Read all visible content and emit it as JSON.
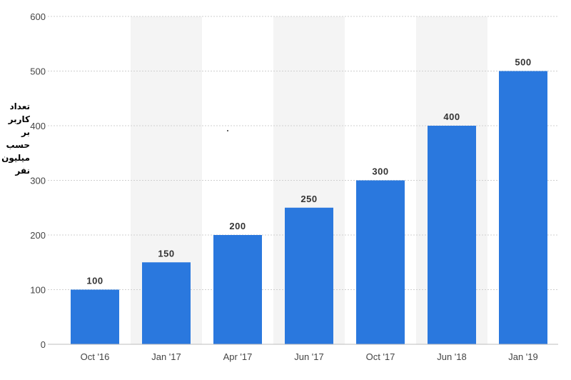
{
  "chart_data": {
    "type": "bar",
    "categories": [
      "Oct '16",
      "Jan '17",
      "Apr '17",
      "Jun '17",
      "Oct '17",
      "Jun '18",
      "Jan '19"
    ],
    "values": [
      100,
      150,
      200,
      250,
      300,
      400,
      500
    ],
    "data_labels": [
      "100",
      "150",
      "200",
      "250",
      "300",
      "400",
      "500"
    ],
    "title": "",
    "xlabel": "",
    "ylabel": "تعداد\nکاربر\nبر\nحسب\nمیلیون\nنفر",
    "ylim": [
      0,
      600
    ],
    "yticks": [
      0,
      100,
      200,
      300,
      400,
      500,
      600
    ],
    "ytick_labels": [
      "0",
      "100",
      "200",
      "300",
      "400",
      "500",
      "600"
    ],
    "grid": true,
    "bar_color": "#2a78de",
    "band_color": "#f4f4f4"
  }
}
